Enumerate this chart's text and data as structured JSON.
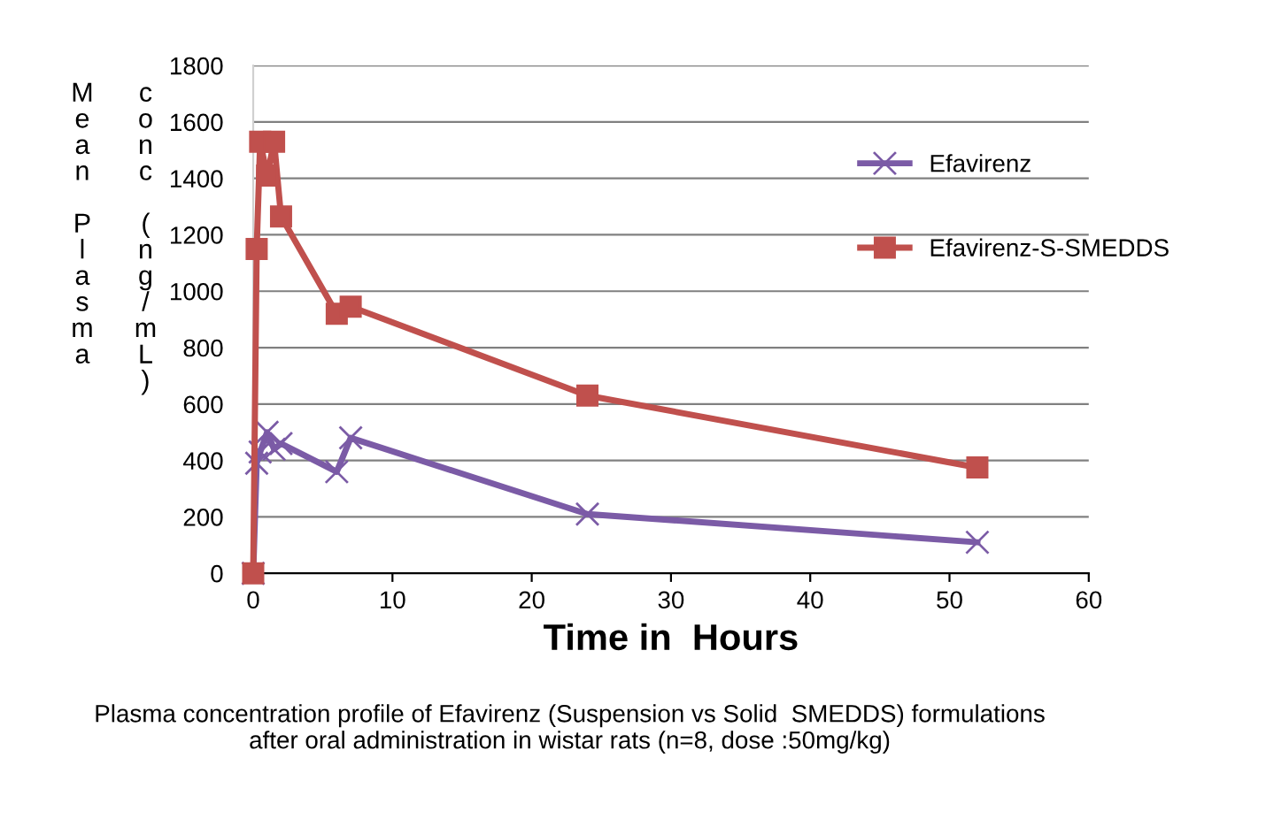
{
  "chart_data": {
    "type": "line",
    "xlabel": "Time in  Hours",
    "ylabel": "Mean Plasma conc (ng/mL)",
    "x": [
      0,
      0.25,
      0.5,
      1,
      1.5,
      2,
      6,
      7,
      24,
      52
    ],
    "series": [
      {
        "name": "Efavirenz",
        "color": "#7b5ba6",
        "marker": "cross",
        "values": [
          0,
          390,
          430,
          500,
          440,
          460,
          360,
          480,
          210,
          110
        ]
      },
      {
        "name": "Efavirenz-S-SMEDDS",
        "color": "#c0504d",
        "marker": "square",
        "values": [
          0,
          1150,
          1530,
          1410,
          1530,
          1265,
          920,
          945,
          630,
          375
        ]
      }
    ],
    "xlim": [
      0,
      60
    ],
    "xticks": [
      0,
      10,
      20,
      30,
      40,
      50,
      60
    ],
    "ylim": [
      0,
      1800
    ],
    "yticks": [
      0,
      200,
      400,
      600,
      800,
      1000,
      1200,
      1400,
      1600,
      1800
    ],
    "grid": "y",
    "legend": "right",
    "line_style": "solid",
    "annotations": [
      "Plasma concentration profile of Efavirenz (Suspension vs Solid  SMEDDS) formulations\nafter oral administration in wistar rats (n=8, dose :50mg/kg)"
    ]
  }
}
